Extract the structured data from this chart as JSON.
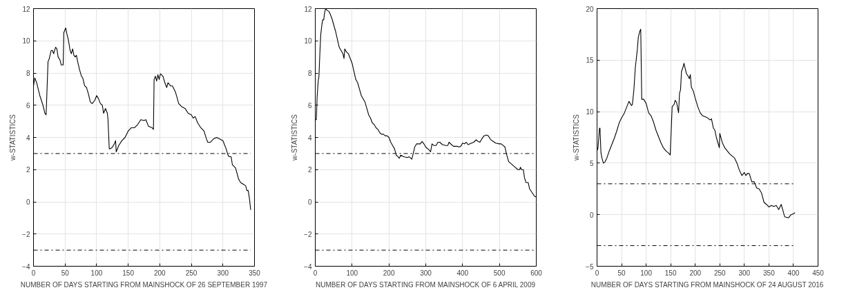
{
  "chart_data": [
    {
      "type": "line",
      "xlabel": "NUMBER OF DAYS STARTING FROM MAINSHOCK OF 26 SEPTEMBER 1997",
      "ylabel": "w-STATISTICS",
      "xlim": [
        0,
        350
      ],
      "ylim": [
        -4,
        12
      ],
      "xticks": [
        0,
        50,
        100,
        150,
        200,
        250,
        300,
        350
      ],
      "yticks": [
        -4,
        -2,
        0,
        2,
        4,
        6,
        8,
        10,
        12
      ],
      "grid": true,
      "line_style": "solid",
      "ref_lines": [
        {
          "axis": "y",
          "value": 3,
          "line_style": "dashdot",
          "color": "#000000"
        },
        {
          "axis": "y",
          "value": -3,
          "line_style": "dashdot",
          "color": "#000000"
        }
      ],
      "series": [
        {
          "color": "#000000",
          "x": [
            0,
            2,
            5,
            10,
            15,
            18,
            20,
            23,
            25,
            28,
            30,
            32,
            35,
            37,
            39,
            42,
            44,
            47,
            48,
            51,
            53,
            55,
            58,
            60,
            62,
            64,
            66,
            68,
            70,
            73,
            76,
            78,
            81,
            84,
            87,
            90,
            93,
            97,
            100,
            103,
            106,
            109,
            111,
            114,
            117,
            118,
            120,
            122,
            125,
            128,
            130,
            131,
            135,
            140,
            145,
            150,
            155,
            160,
            165,
            170,
            175,
            178,
            182,
            188,
            190,
            191,
            193,
            195,
            197,
            199,
            201,
            205,
            208,
            211,
            213,
            217,
            220,
            225,
            230,
            235,
            240,
            245,
            250,
            253,
            256,
            260,
            265,
            270,
            274,
            276,
            280,
            285,
            290,
            295,
            300,
            305,
            308,
            310,
            313,
            315,
            320,
            325,
            328,
            332,
            336,
            338,
            340,
            342,
            344
          ],
          "values": [
            7.2,
            7.7,
            7.4,
            6.6,
            6.0,
            5.5,
            5.4,
            8.7,
            8.9,
            9.4,
            9.4,
            9.2,
            9.6,
            9.5,
            9.0,
            8.8,
            8.5,
            8.5,
            10.5,
            10.8,
            10.4,
            10.1,
            9.4,
            9.2,
            9.5,
            9.1,
            9.0,
            9.1,
            8.7,
            8.2,
            7.8,
            7.7,
            7.2,
            7.1,
            6.7,
            6.2,
            6.1,
            6.3,
            6.6,
            6.4,
            6.1,
            6.0,
            5.5,
            5.8,
            5.5,
            5.1,
            3.3,
            3.3,
            3.4,
            3.6,
            3.8,
            3.1,
            3.5,
            3.8,
            4.0,
            4.4,
            4.6,
            4.6,
            4.8,
            5.1,
            5.05,
            5.1,
            4.7,
            4.6,
            4.5,
            7.6,
            7.8,
            7.5,
            7.9,
            7.6,
            7.95,
            7.8,
            7.4,
            7.1,
            7.4,
            7.2,
            7.2,
            6.8,
            6.1,
            5.9,
            5.8,
            5.5,
            5.4,
            5.2,
            5.3,
            4.9,
            4.6,
            4.4,
            3.9,
            3.7,
            3.7,
            3.9,
            4.0,
            3.9,
            3.8,
            3.3,
            2.9,
            2.8,
            2.8,
            2.3,
            2.1,
            1.4,
            1.2,
            1.1,
            1.0,
            0.7,
            0.7,
            0.2,
            -0.5
          ]
        }
      ]
    },
    {
      "type": "line",
      "xlabel": "NUMBER OF DAYS STARTING FROM MAINSHOCK OF 6 APRIL 2009",
      "ylabel": "w-STATISTICS",
      "xlim": [
        0,
        600
      ],
      "ylim": [
        -4,
        12
      ],
      "xticks": [
        0,
        100,
        200,
        300,
        400,
        500,
        600
      ],
      "yticks": [
        -4,
        -2,
        0,
        2,
        4,
        6,
        8,
        10,
        12
      ],
      "grid": true,
      "line_style": "solid",
      "ref_lines": [
        {
          "axis": "y",
          "value": 3,
          "line_style": "dashdot",
          "color": "#000000"
        },
        {
          "axis": "y",
          "value": -3,
          "line_style": "dashdot",
          "color": "#000000"
        }
      ],
      "series": [
        {
          "color": "#000000",
          "x": [
            0,
            3,
            5,
            8,
            10,
            13,
            15,
            18,
            20,
            23,
            25,
            28,
            32,
            38,
            45,
            55,
            65,
            70,
            75,
            78,
            80,
            85,
            90,
            95,
            100,
            105,
            110,
            115,
            120,
            125,
            130,
            135,
            140,
            145,
            150,
            155,
            160,
            165,
            170,
            175,
            180,
            185,
            190,
            195,
            200,
            205,
            210,
            215,
            220,
            225,
            228,
            232,
            240,
            250,
            255,
            262,
            265,
            270,
            275,
            285,
            290,
            295,
            300,
            310,
            313,
            317,
            322,
            328,
            333,
            338,
            345,
            355,
            360,
            363,
            370,
            375,
            385,
            390,
            395,
            400,
            405,
            410,
            415,
            420,
            430,
            437,
            442,
            447,
            452,
            458,
            465,
            470,
            475,
            480,
            490,
            500,
            505,
            510,
            515,
            520,
            525,
            530,
            540,
            550,
            555,
            557,
            560,
            565,
            568,
            572,
            578,
            582,
            588,
            595,
            600
          ],
          "values": [
            5.1,
            5.1,
            6.5,
            7.5,
            7.8,
            9.5,
            10.4,
            11.0,
            11.3,
            11.3,
            11.7,
            12.0,
            11.9,
            11.8,
            11.4,
            10.6,
            9.6,
            9.4,
            9.2,
            8.9,
            9.5,
            9.3,
            9.2,
            8.9,
            8.6,
            8.1,
            7.6,
            7.4,
            7.0,
            6.6,
            6.4,
            6.2,
            5.8,
            5.4,
            5.2,
            4.9,
            4.8,
            4.6,
            4.5,
            4.3,
            4.2,
            4.2,
            4.1,
            4.1,
            4.0,
            3.7,
            3.5,
            3.3,
            2.9,
            2.8,
            2.7,
            2.9,
            2.8,
            2.75,
            2.8,
            2.65,
            2.9,
            3.4,
            3.6,
            3.6,
            3.75,
            3.6,
            3.4,
            3.2,
            3.1,
            3.6,
            3.5,
            3.5,
            3.7,
            3.7,
            3.55,
            3.5,
            3.5,
            3.7,
            3.55,
            3.45,
            3.45,
            3.4,
            3.45,
            3.65,
            3.6,
            3.7,
            3.55,
            3.6,
            3.7,
            3.85,
            3.75,
            3.7,
            3.9,
            4.1,
            4.15,
            4.1,
            3.9,
            3.8,
            3.65,
            3.6,
            3.6,
            3.5,
            3.4,
            2.9,
            2.5,
            2.4,
            2.2,
            2.0,
            2.0,
            2.15,
            2.0,
            2.0,
            1.5,
            1.2,
            1.2,
            0.8,
            0.6,
            0.35,
            0.3
          ]
        }
      ]
    },
    {
      "type": "line",
      "xlabel": "NUMBER OF DAYS STARTING FROM MAINSHOCK OF 24 AUGUST 2016",
      "ylabel": "w-STATISTICS",
      "xlim": [
        0,
        450
      ],
      "ylim": [
        -5,
        20
      ],
      "xticks": [
        0,
        50,
        100,
        150,
        200,
        250,
        300,
        350,
        400,
        450
      ],
      "yticks": [
        -5,
        0,
        5,
        10,
        15,
        20
      ],
      "grid": true,
      "line_style": "solid",
      "ref_lines": [
        {
          "axis": "y",
          "value": 3,
          "line_style": "dashdot",
          "color": "#000000"
        },
        {
          "axis": "y",
          "value": -3,
          "line_style": "dashdot",
          "color": "#000000"
        }
      ],
      "series": [
        {
          "color": "#000000",
          "x": [
            0,
            2,
            5,
            6,
            8,
            10,
            13,
            16,
            20,
            25,
            30,
            35,
            40,
            45,
            50,
            55,
            60,
            65,
            70,
            72,
            75,
            78,
            82,
            84,
            87,
            89,
            91,
            95,
            100,
            105,
            110,
            115,
            120,
            125,
            130,
            135,
            140,
            145,
            149,
            153,
            157,
            159,
            162,
            166,
            168,
            170,
            172,
            175,
            177,
            179,
            182,
            186,
            188,
            190,
            192,
            196,
            200,
            205,
            210,
            215,
            220,
            225,
            230,
            233,
            237,
            240,
            243,
            246,
            249,
            250,
            255,
            260,
            265,
            270,
            275,
            280,
            285,
            290,
            295,
            300,
            303,
            306,
            310,
            315,
            320,
            325,
            330,
            335,
            340,
            345,
            350,
            355,
            360,
            365,
            370,
            375,
            378,
            382,
            386,
            390,
            395,
            400,
            403
          ],
          "values": [
            6.2,
            6.5,
            8.4,
            8.4,
            6.0,
            5.5,
            5.0,
            5.1,
            5.5,
            6.2,
            6.8,
            7.4,
            8.1,
            8.9,
            9.4,
            9.8,
            10.4,
            11.0,
            10.6,
            10.7,
            12.1,
            14.3,
            16.0,
            17.2,
            17.8,
            18.0,
            11.2,
            11.2,
            10.8,
            9.9,
            9.6,
            9.0,
            8.2,
            7.6,
            7.0,
            6.5,
            6.2,
            6.0,
            5.8,
            10.5,
            10.7,
            11.1,
            10.9,
            9.9,
            11.8,
            12.1,
            13.9,
            14.3,
            14.7,
            14.3,
            13.7,
            13.4,
            13.2,
            13.6,
            12.4,
            12.0,
            11.3,
            10.5,
            9.9,
            9.6,
            9.5,
            9.4,
            9.2,
            9.3,
            8.4,
            8.2,
            7.5,
            7.0,
            6.5,
            7.9,
            7.0,
            6.5,
            6.2,
            5.9,
            5.7,
            5.5,
            5.0,
            4.3,
            3.8,
            4.1,
            3.8,
            4.0,
            4.0,
            3.2,
            3.2,
            2.6,
            2.5,
            2.1,
            1.2,
            1.0,
            0.75,
            0.9,
            0.8,
            0.9,
            0.5,
            1.0,
            0.5,
            -0.2,
            -0.25,
            -0.3,
            0.0,
            0.1,
            0.2
          ]
        }
      ]
    }
  ]
}
